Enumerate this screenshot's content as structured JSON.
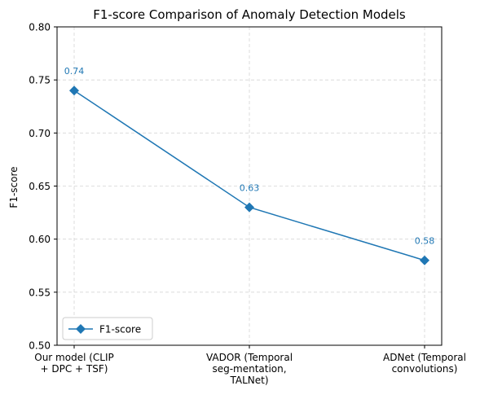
{
  "chart_data": {
    "type": "line",
    "title": "F1-score Comparison of Anomaly Detection Models",
    "xlabel": "",
    "ylabel": "F1-score",
    "categories": [
      [
        "Our model (CLIP",
        "+ DPC + TSF)"
      ],
      [
        "VADOR (Temporal",
        "seg-mentation,",
        "TALNet)"
      ],
      [
        "ADNet (Temporal",
        "convolutions)"
      ]
    ],
    "series": [
      {
        "name": "F1-score",
        "values": [
          0.74,
          0.63,
          0.58
        ],
        "color": "#1f77b4",
        "marker": "diamond"
      }
    ],
    "data_labels": [
      "0.74",
      "0.63",
      "0.58"
    ],
    "ylim": [
      0.5,
      0.8
    ],
    "yticks": [
      "0.50",
      "0.55",
      "0.60",
      "0.65",
      "0.70",
      "0.75",
      "0.80"
    ],
    "ytick_values": [
      0.5,
      0.55,
      0.6,
      0.65,
      0.7,
      0.75,
      0.8
    ],
    "grid": true,
    "legend_position": "lower-left"
  }
}
